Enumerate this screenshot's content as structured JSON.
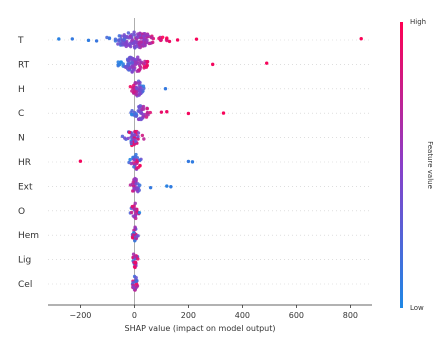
{
  "chart_data": {
    "type": "scatter",
    "subtype": "shap-beeswarm",
    "title": "",
    "xlabel": "SHAP value (impact on model output)",
    "xlim": [
      -320,
      880
    ],
    "xticks": [
      -200,
      0,
      200,
      400,
      600,
      800
    ],
    "zero_line": true,
    "features": [
      "T",
      "RT",
      "H",
      "C",
      "N",
      "HR",
      "Ext",
      "O",
      "Hem",
      "Lig",
      "Cel"
    ],
    "colorbar": {
      "label": "Feature value",
      "high_label": "High",
      "low_label": "Low",
      "low_color": "#1e88e5",
      "high_color": "#ff0052"
    },
    "outliers": [
      {
        "feature": "T",
        "x": -280,
        "v": 0.05
      },
      {
        "feature": "T",
        "x": -230,
        "v": 0.1
      },
      {
        "feature": "T",
        "x": -170,
        "v": 0.08
      },
      {
        "feature": "T",
        "x": -140,
        "v": 0.12
      },
      {
        "feature": "T",
        "x": 130,
        "v": 0.92
      },
      {
        "feature": "T",
        "x": 160,
        "v": 0.95
      },
      {
        "feature": "T",
        "x": 230,
        "v": 0.97
      },
      {
        "feature": "T",
        "x": 840,
        "v": 0.98
      },
      {
        "feature": "RT",
        "x": 290,
        "v": 0.95
      },
      {
        "feature": "RT",
        "x": 490,
        "v": 0.96
      },
      {
        "feature": "H",
        "x": 115,
        "v": 0.1
      },
      {
        "feature": "C",
        "x": 100,
        "v": 0.9
      },
      {
        "feature": "C",
        "x": 120,
        "v": 0.92
      },
      {
        "feature": "C",
        "x": 200,
        "v": 0.95
      },
      {
        "feature": "C",
        "x": 330,
        "v": 0.97
      },
      {
        "feature": "HR",
        "x": -200,
        "v": 0.95
      },
      {
        "feature": "HR",
        "x": 200,
        "v": 0.1
      },
      {
        "feature": "HR",
        "x": 215,
        "v": 0.08
      },
      {
        "feature": "Ext",
        "x": 60,
        "v": 0.1
      },
      {
        "feature": "Ext",
        "x": 120,
        "v": 0.05
      },
      {
        "feature": "Ext",
        "x": 135,
        "v": 0.08
      }
    ],
    "clusters": [
      {
        "feature": "T",
        "min": -110,
        "max": 120,
        "n": 140,
        "lowside": "neg"
      },
      {
        "feature": "RT",
        "min": -60,
        "max": 60,
        "n": 80,
        "lowside": "neg"
      },
      {
        "feature": "H",
        "min": -15,
        "max": 40,
        "n": 45,
        "lowside": "pos"
      },
      {
        "feature": "C",
        "min": -15,
        "max": 70,
        "n": 40,
        "lowside": "neg"
      },
      {
        "feature": "N",
        "min": -45,
        "max": 35,
        "n": 40,
        "lowside": "mix"
      },
      {
        "feature": "HR",
        "min": -20,
        "max": 30,
        "n": 30,
        "lowside": "mix"
      },
      {
        "feature": "Ext",
        "min": -20,
        "max": 30,
        "n": 30,
        "lowside": "pos"
      },
      {
        "feature": "O",
        "min": -15,
        "max": 20,
        "n": 25,
        "lowside": "mix"
      },
      {
        "feature": "Hem",
        "min": -10,
        "max": 15,
        "n": 22,
        "lowside": "mix"
      },
      {
        "feature": "Lig",
        "min": -10,
        "max": 15,
        "n": 22,
        "lowside": "mix"
      },
      {
        "feature": "Cel",
        "min": -10,
        "max": 15,
        "n": 22,
        "lowside": "mix"
      }
    ]
  }
}
